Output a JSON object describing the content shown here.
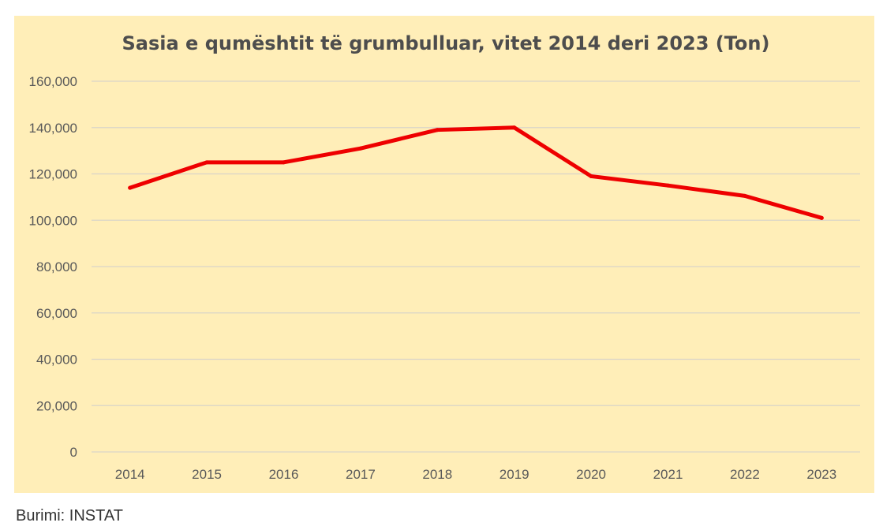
{
  "chart_data": {
    "type": "line",
    "title": "Sasia e qumështit të grumbulluar, vitet 2014 deri 2023 (Ton)",
    "xlabel": "",
    "ylabel": "",
    "categories": [
      "2014",
      "2015",
      "2016",
      "2017",
      "2018",
      "2019",
      "2020",
      "2021",
      "2022",
      "2023"
    ],
    "series": [
      {
        "values": [
          114000,
          125000,
          125000,
          131000,
          139000,
          140000,
          119000,
          115000,
          110500,
          101000
        ]
      }
    ],
    "ylim": [
      0,
      160000
    ],
    "yticks": [
      0,
      20000,
      40000,
      60000,
      80000,
      100000,
      120000,
      140000,
      160000
    ],
    "ytick_labels": [
      "0",
      "20,000",
      "40,000",
      "60,000",
      "80,000",
      "100,000",
      "120,000",
      "140,000",
      "160,000"
    ],
    "grid": true,
    "legend": "none",
    "line_color": "#ee0000",
    "background_color": "#ffeeb8"
  },
  "source": "Burimi: INSTAT"
}
